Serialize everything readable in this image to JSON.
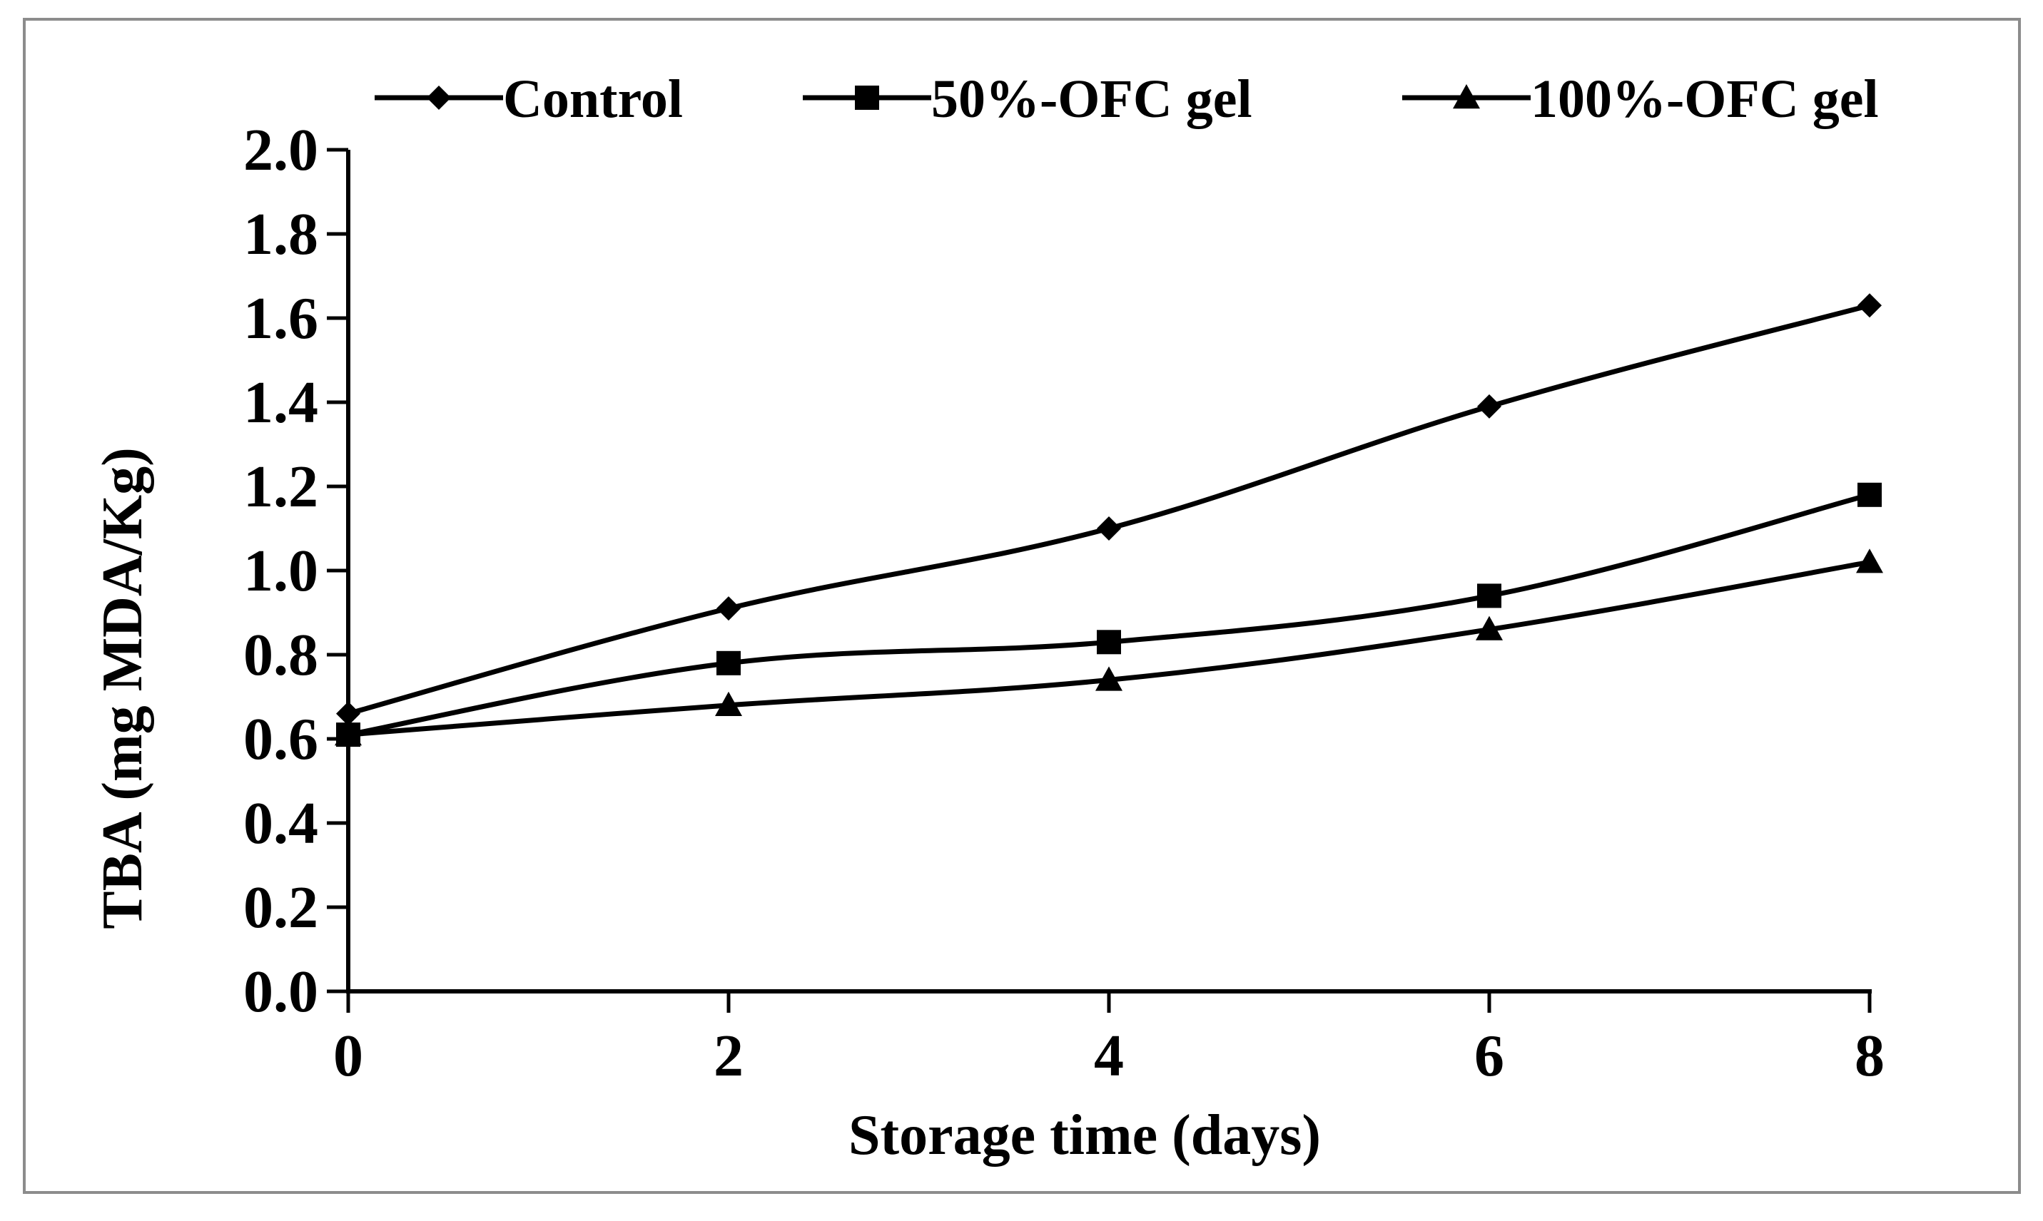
{
  "chart_data": {
    "type": "line",
    "title": "",
    "xlabel": "Storage time (days)",
    "ylabel": "TBA (mg MDA/Kg)",
    "x": [
      0,
      2,
      4,
      6,
      8
    ],
    "xlim": [
      0,
      8
    ],
    "xticks": [
      "0",
      "2",
      "4",
      "6",
      "8"
    ],
    "ylim": [
      0.0,
      2.0
    ],
    "yticks": [
      "0.0",
      "0.2",
      "0.4",
      "0.6",
      "0.8",
      "1.0",
      "1.2",
      "1.4",
      "1.6",
      "1.8",
      "2.0"
    ],
    "grid": false,
    "legend_position": "top",
    "series": [
      {
        "name": "Control",
        "marker": "diamond",
        "values": [
          0.66,
          0.91,
          1.1,
          1.39,
          1.63
        ]
      },
      {
        "name": "50%-OFC gel",
        "marker": "square",
        "values": [
          0.61,
          0.78,
          0.83,
          0.94,
          1.18
        ]
      },
      {
        "name": "100%-OFC gel",
        "marker": "triangle",
        "values": [
          0.61,
          0.68,
          0.74,
          0.86,
          1.02
        ]
      }
    ],
    "colors": {
      "line": "#000000",
      "frame": "#8c8c8c",
      "background": "#ffffff"
    }
  }
}
